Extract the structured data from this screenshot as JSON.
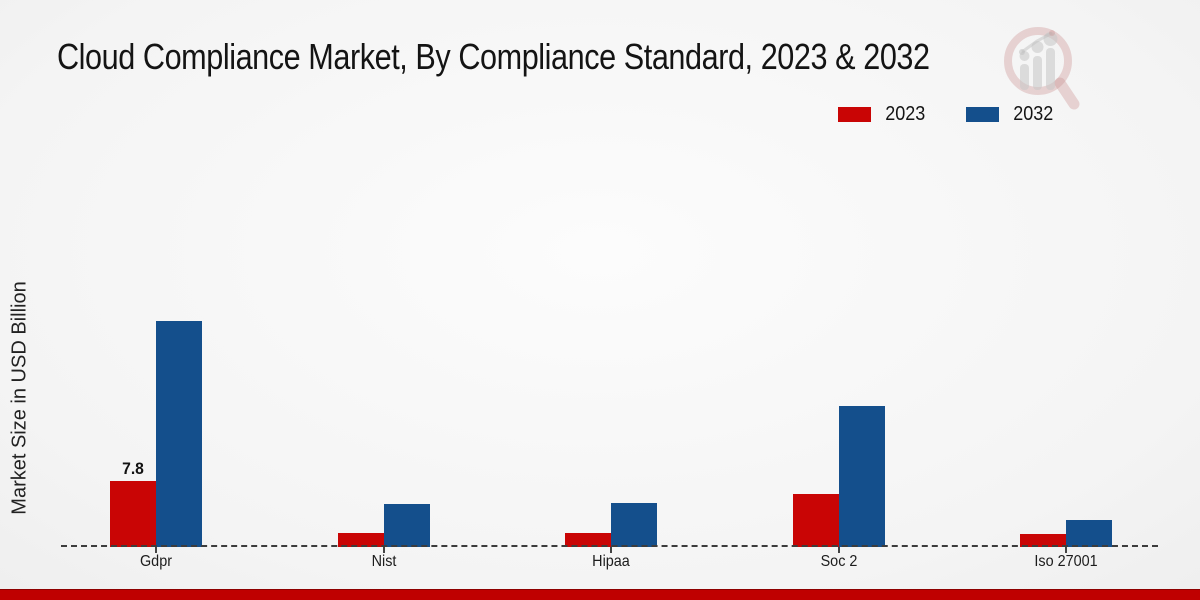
{
  "title": "Cloud Compliance Market, By Compliance Standard, 2023 & 2032",
  "y_axis_label": "Market Size in USD Billion",
  "legend": {
    "items": [
      {
        "label": "2023",
        "color": "#c90505"
      },
      {
        "label": "2032",
        "color": "#144f8c"
      }
    ],
    "position": "top-right"
  },
  "watermark_icon": "magnifier-bar-chart-logo",
  "footer_accent_color": "#bf0000",
  "chart_data": {
    "type": "bar",
    "categories": [
      "Gdpr",
      "Nist",
      "Hipaa",
      "Soc 2",
      "Iso 27001"
    ],
    "series": [
      {
        "name": "2023",
        "color": "#c90505",
        "values": [
          7.8,
          1.65,
          1.65,
          6.3,
          1.5
        ]
      },
      {
        "name": "2032",
        "color": "#144f8c",
        "values": [
          26.7,
          5.1,
          5.2,
          16.7,
          3.2
        ]
      }
    ],
    "data_labels": [
      {
        "category": "Gdpr",
        "series": "2023",
        "text": "7.8"
      }
    ],
    "title": "Cloud Compliance Market, By Compliance Standard, 2023 & 2032",
    "xlabel": "",
    "ylabel": "Market Size in USD Billion",
    "ylim": [
      0,
      28
    ],
    "grid": false,
    "legend_position": "top-right",
    "baseline_style": "dashed",
    "y_ticks_shown": false
  }
}
